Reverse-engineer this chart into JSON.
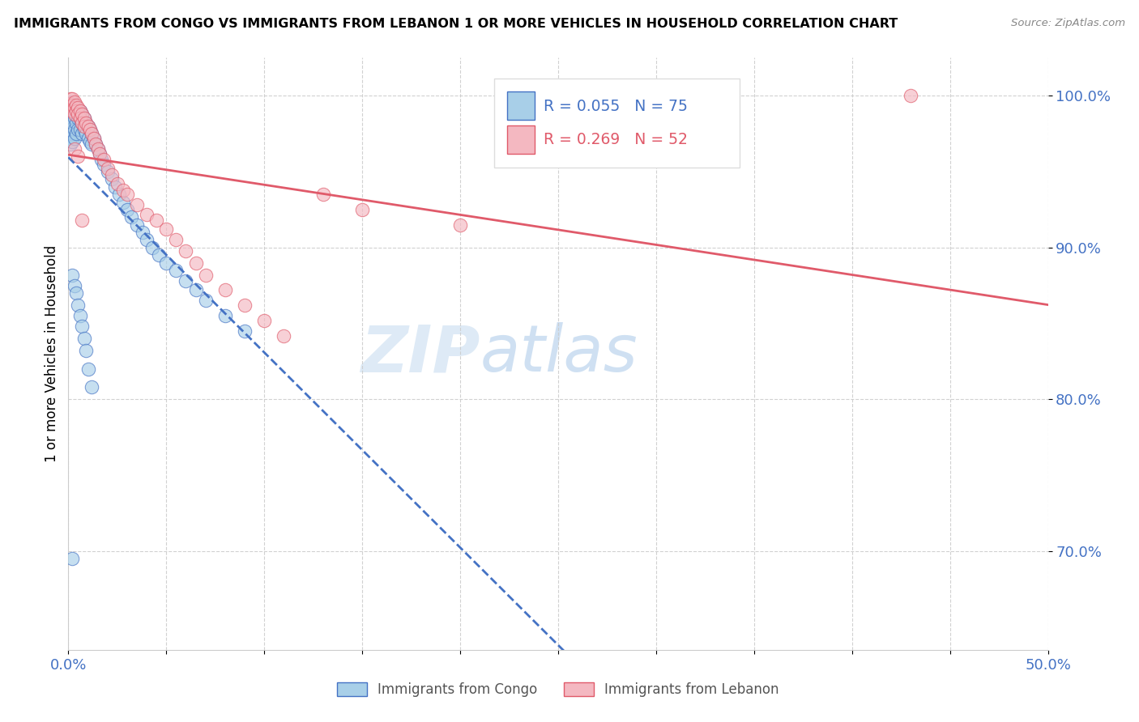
{
  "title": "IMMIGRANTS FROM CONGO VS IMMIGRANTS FROM LEBANON 1 OR MORE VEHICLES IN HOUSEHOLD CORRELATION CHART",
  "source": "Source: ZipAtlas.com",
  "ylabel": "1 or more Vehicles in Household",
  "xlim": [
    0.0,
    0.5
  ],
  "ylim": [
    0.635,
    1.025
  ],
  "yticks": [
    0.7,
    0.8,
    0.9,
    1.0
  ],
  "ytick_labels": [
    "70.0%",
    "80.0%",
    "90.0%",
    "100.0%"
  ],
  "xticks": [
    0.0,
    0.05,
    0.1,
    0.15,
    0.2,
    0.25,
    0.3,
    0.35,
    0.4,
    0.45,
    0.5
  ],
  "xtick_labels": [
    "0.0%",
    "",
    "",
    "",
    "",
    "",
    "",
    "",
    "",
    "",
    "50.0%"
  ],
  "congo_color": "#a8cfe8",
  "lebanon_color": "#f4b8c1",
  "trend_congo_color": "#4472c4",
  "trend_lebanon_color": "#e05a6a",
  "R_congo": 0.055,
  "N_congo": 75,
  "R_lebanon": 0.269,
  "N_lebanon": 52,
  "background_color": "#ffffff",
  "watermark_zip": "ZIP",
  "watermark_atlas": "atlas",
  "axis_label_color": "#4472c4",
  "congo_x": [
    0.001,
    0.001,
    0.001,
    0.001,
    0.001,
    0.002,
    0.002,
    0.002,
    0.002,
    0.002,
    0.002,
    0.003,
    0.003,
    0.003,
    0.003,
    0.003,
    0.004,
    0.004,
    0.004,
    0.004,
    0.005,
    0.005,
    0.005,
    0.006,
    0.006,
    0.006,
    0.007,
    0.007,
    0.007,
    0.008,
    0.008,
    0.009,
    0.009,
    0.01,
    0.01,
    0.011,
    0.011,
    0.012,
    0.012,
    0.013,
    0.014,
    0.015,
    0.016,
    0.017,
    0.018,
    0.02,
    0.022,
    0.024,
    0.026,
    0.028,
    0.03,
    0.032,
    0.035,
    0.038,
    0.04,
    0.043,
    0.046,
    0.05,
    0.055,
    0.06,
    0.065,
    0.07,
    0.08,
    0.09,
    0.002,
    0.003,
    0.004,
    0.005,
    0.006,
    0.007,
    0.008,
    0.009,
    0.01,
    0.012,
    0.002
  ],
  "congo_y": [
    0.99,
    0.985,
    0.978,
    0.972,
    0.968,
    0.996,
    0.992,
    0.988,
    0.982,
    0.975,
    0.97,
    0.994,
    0.99,
    0.985,
    0.978,
    0.972,
    0.992,
    0.988,
    0.982,
    0.975,
    0.99,
    0.985,
    0.978,
    0.99,
    0.985,
    0.978,
    0.988,
    0.982,
    0.975,
    0.985,
    0.978,
    0.982,
    0.975,
    0.98,
    0.972,
    0.978,
    0.97,
    0.975,
    0.968,
    0.972,
    0.968,
    0.965,
    0.962,
    0.958,
    0.955,
    0.95,
    0.945,
    0.94,
    0.935,
    0.93,
    0.925,
    0.92,
    0.915,
    0.91,
    0.905,
    0.9,
    0.895,
    0.89,
    0.885,
    0.878,
    0.872,
    0.865,
    0.855,
    0.845,
    0.882,
    0.875,
    0.87,
    0.862,
    0.855,
    0.848,
    0.84,
    0.832,
    0.82,
    0.808,
    0.695
  ],
  "lebanon_x": [
    0.001,
    0.001,
    0.001,
    0.002,
    0.002,
    0.002,
    0.003,
    0.003,
    0.003,
    0.004,
    0.004,
    0.005,
    0.005,
    0.006,
    0.006,
    0.007,
    0.007,
    0.008,
    0.008,
    0.009,
    0.01,
    0.011,
    0.012,
    0.013,
    0.014,
    0.015,
    0.016,
    0.018,
    0.02,
    0.022,
    0.025,
    0.028,
    0.03,
    0.035,
    0.04,
    0.045,
    0.05,
    0.055,
    0.06,
    0.065,
    0.07,
    0.08,
    0.09,
    0.1,
    0.11,
    0.13,
    0.15,
    0.2,
    0.003,
    0.005,
    0.43,
    0.007
  ],
  "lebanon_y": [
    0.998,
    0.995,
    0.992,
    0.998,
    0.994,
    0.99,
    0.996,
    0.992,
    0.988,
    0.994,
    0.99,
    0.992,
    0.988,
    0.99,
    0.985,
    0.988,
    0.982,
    0.985,
    0.98,
    0.982,
    0.98,
    0.978,
    0.975,
    0.972,
    0.968,
    0.965,
    0.962,
    0.958,
    0.952,
    0.948,
    0.942,
    0.938,
    0.935,
    0.928,
    0.922,
    0.918,
    0.912,
    0.905,
    0.898,
    0.89,
    0.882,
    0.872,
    0.862,
    0.852,
    0.842,
    0.935,
    0.925,
    0.915,
    0.965,
    0.96,
    1.0,
    0.918
  ]
}
